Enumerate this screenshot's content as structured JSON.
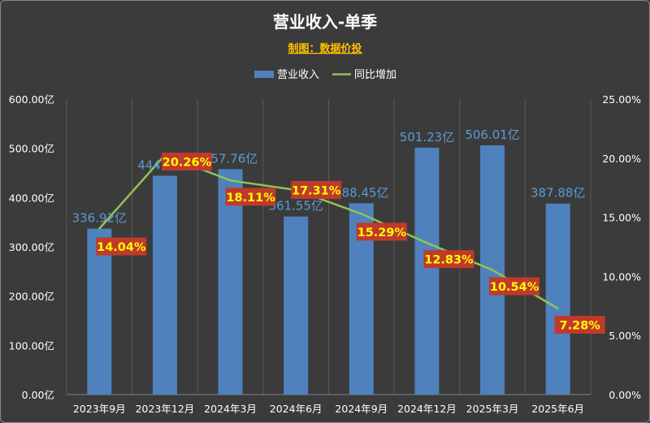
{
  "chart_data": {
    "type": "bar",
    "title": "营业收入-单季",
    "subtitle": "制图：数据价投",
    "categories": [
      "2023年9月",
      "2023年12月",
      "2024年3月",
      "2024年6月",
      "2024年9月",
      "2024年12月",
      "2025年3月",
      "2025年6月"
    ],
    "series": [
      {
        "name": "营业收入",
        "type": "bar",
        "axis": "left",
        "color": "#4f81bd",
        "label_color": "#5b9bd5",
        "values": [
          336.92,
          444.29,
          457.76,
          361.55,
          388.45,
          501.23,
          506.01,
          387.88
        ],
        "labels": [
          "336.92亿",
          "444.29亿",
          "457.76亿",
          "361.55亿",
          "388.45亿",
          "501.23亿",
          "506.01亿",
          "387.88亿"
        ]
      },
      {
        "name": "同比增加",
        "type": "line",
        "axis": "right",
        "color": "#92c353",
        "label_bg": "#c0392b",
        "label_color": "#ffff00",
        "values": [
          14.04,
          20.26,
          18.11,
          17.31,
          15.29,
          12.83,
          10.54,
          7.28
        ],
        "labels": [
          "14.04%",
          "20.26%",
          "18.11%",
          "17.31%",
          "15.29%",
          "12.83%",
          "10.54%",
          "7.28%"
        ]
      }
    ],
    "left_axis": {
      "min": 0,
      "max": 600,
      "step": 100,
      "tick_labels": [
        "0.00亿",
        "100.00亿",
        "200.00亿",
        "300.00亿",
        "400.00亿",
        "500.00亿",
        "600.00亿"
      ]
    },
    "right_axis": {
      "min": 0,
      "max": 25,
      "step": 5,
      "tick_labels": [
        "0.00%",
        "5.00%",
        "10.00%",
        "15.00%",
        "20.00%",
        "25.00%"
      ]
    },
    "grid": "vertical",
    "legend_position": "top-center",
    "background": "#3b3b3b",
    "grid_color": "#595959"
  }
}
